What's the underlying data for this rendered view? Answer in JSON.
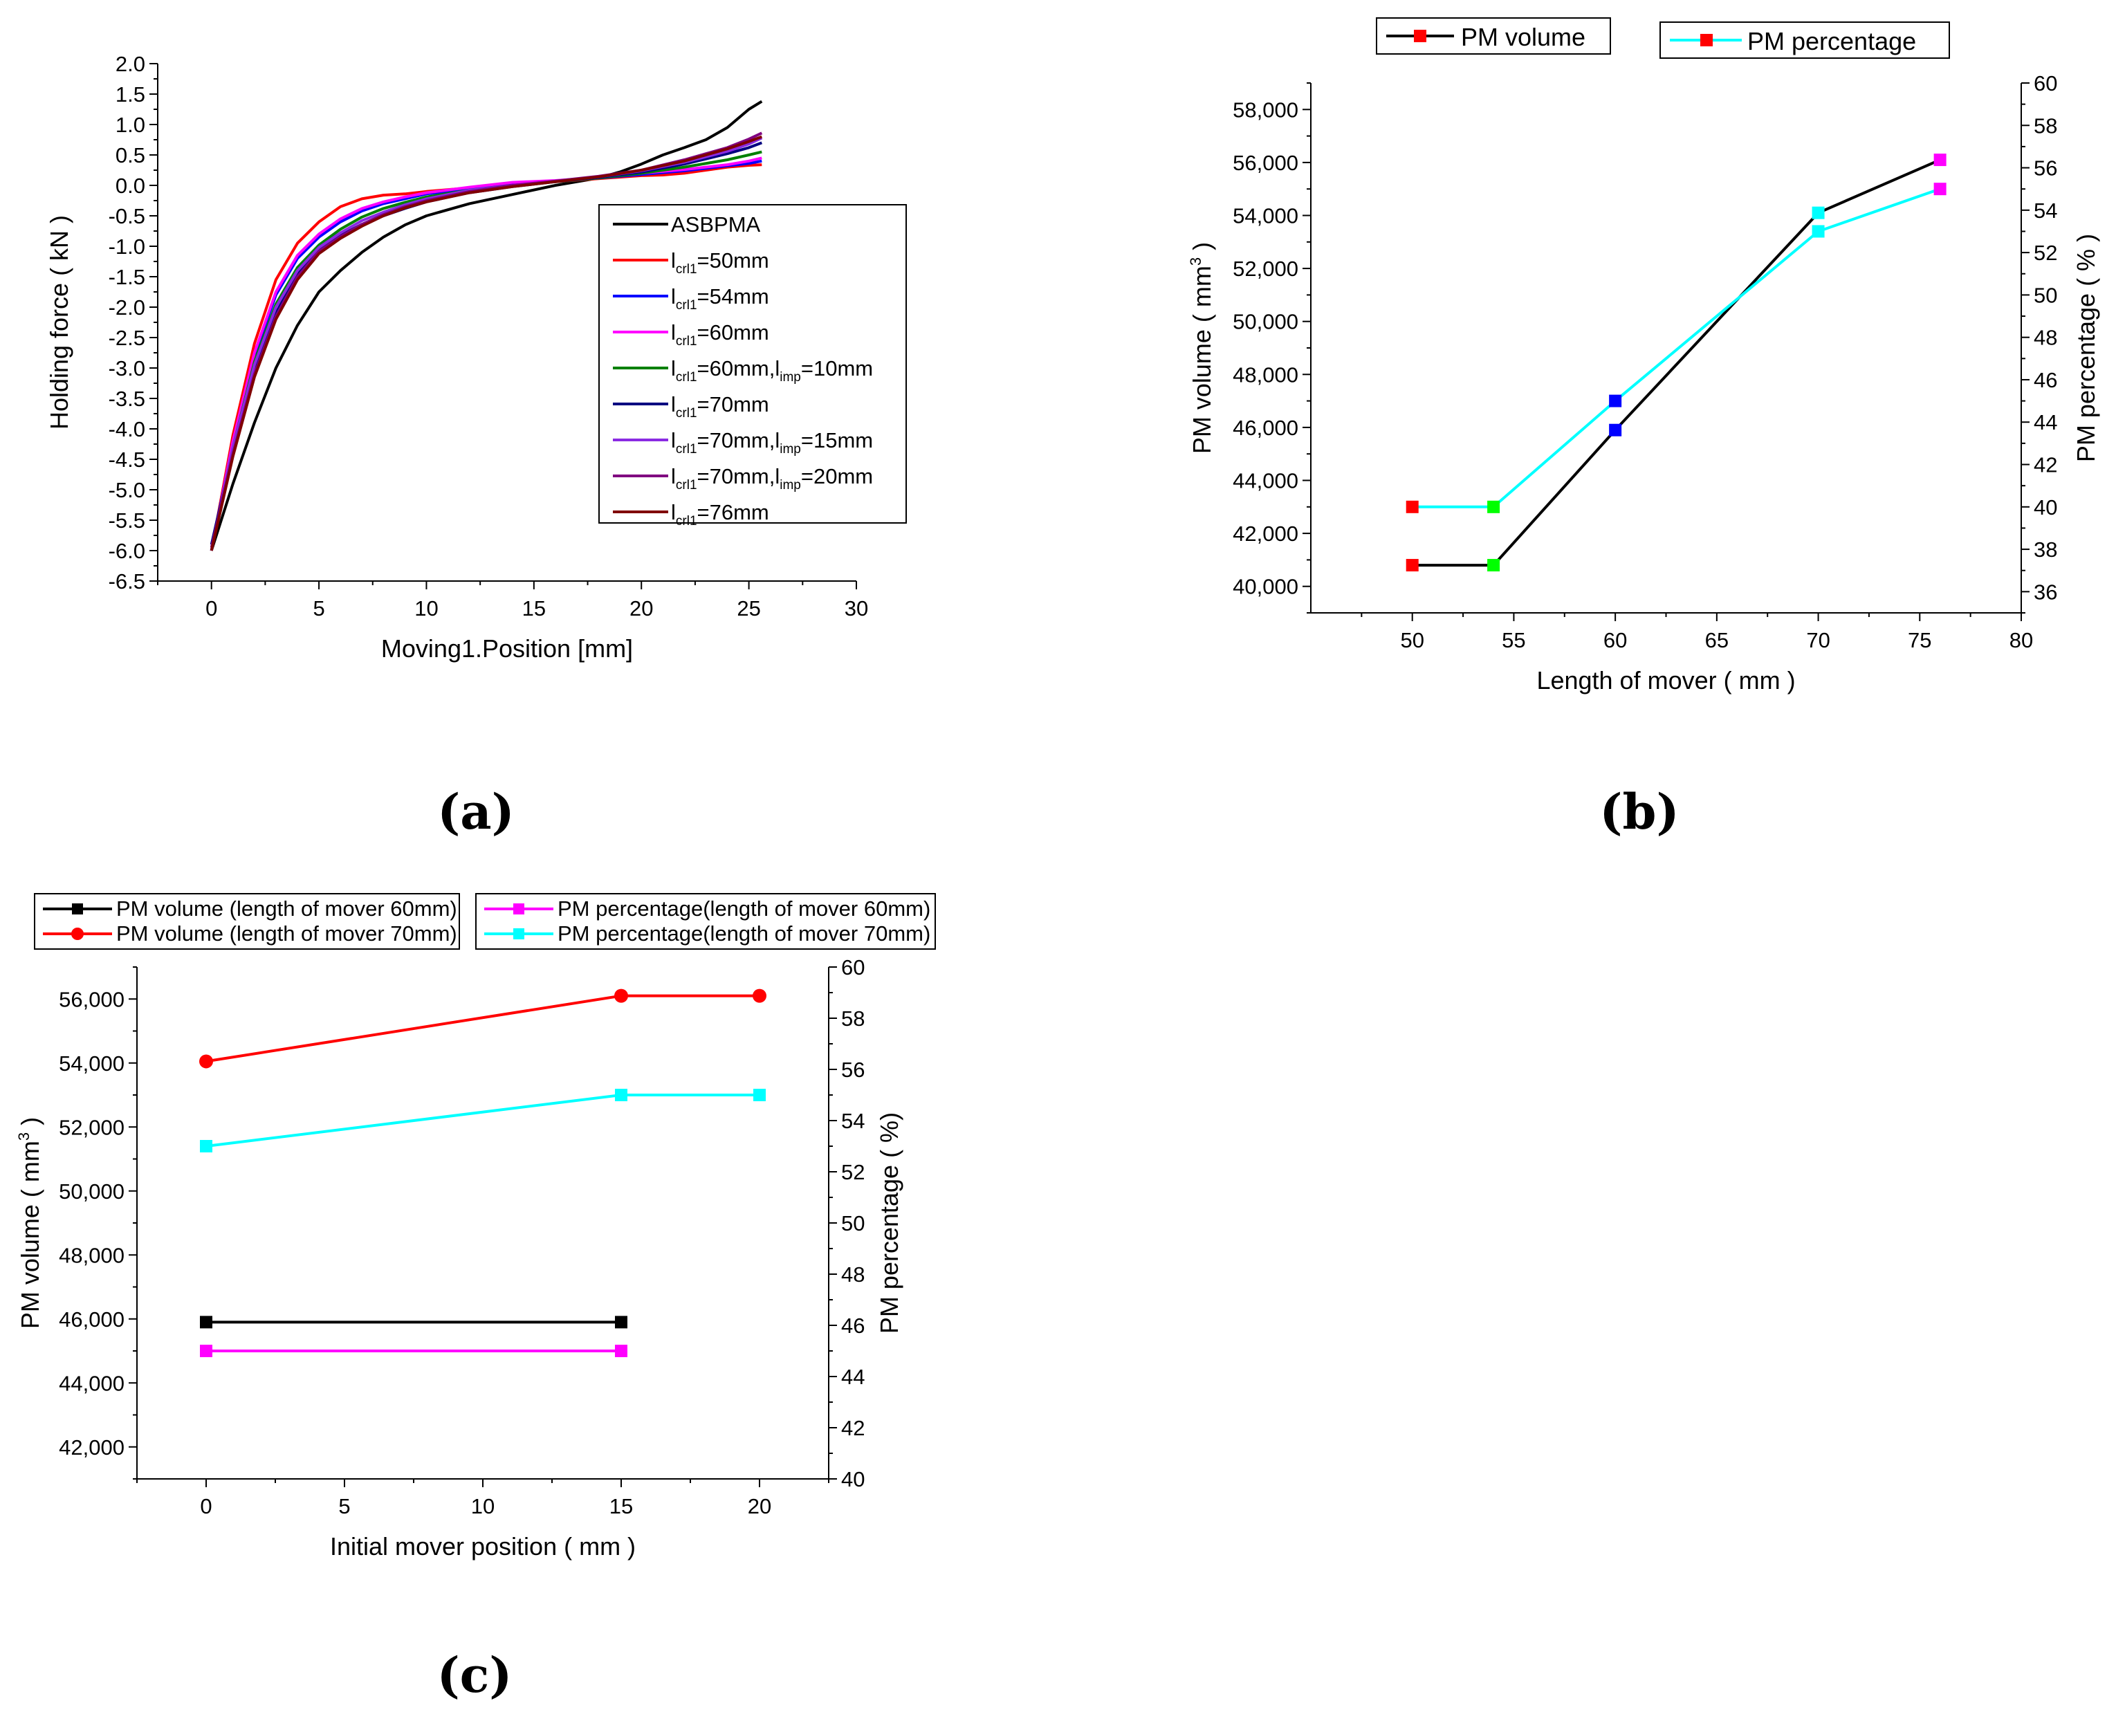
{
  "chart_data": [
    {
      "id": "a",
      "type": "line",
      "panel_label": "(a)",
      "xlabel": "Moving1.Position [mm]",
      "ylabel": "Holding force ( kN )",
      "xlim": [
        -2.5,
        30
      ],
      "ylim": [
        -6.5,
        2.0
      ],
      "xticks": [
        "0",
        "5",
        "10",
        "15",
        "20",
        "25",
        "30"
      ],
      "yticks": [
        "2.0",
        "1.5",
        "1.0",
        "0.5",
        "0.0",
        "-0.5",
        "-1.0",
        "-1.5",
        "-2.0",
        "-2.5",
        "-3.0",
        "-3.5",
        "-4.0",
        "-4.5",
        "-5.0",
        "-5.5",
        "-6.0",
        "-6.5"
      ],
      "series": [
        {
          "name": "ASBPMA",
          "legend": {
            "base": "ASBPMA",
            "sub1": "",
            "mid": "",
            "sub2": "",
            "tail": ""
          },
          "color": "#000000",
          "x": [
            0,
            1,
            2,
            3,
            4,
            5,
            6,
            7,
            8,
            9,
            10,
            12,
            14,
            16,
            18,
            19,
            20,
            21,
            22,
            23,
            24,
            25,
            25.6
          ],
          "y": [
            -6.0,
            -4.9,
            -3.9,
            -3.0,
            -2.3,
            -1.75,
            -1.4,
            -1.1,
            -0.85,
            -0.65,
            -0.5,
            -0.3,
            -0.15,
            0.0,
            0.12,
            0.22,
            0.35,
            0.5,
            0.62,
            0.75,
            0.95,
            1.25,
            1.38
          ]
        },
        {
          "name": "lcrl1=50mm",
          "legend": {
            "base": "l",
            "sub1": "crl1",
            "mid": "=50mm",
            "sub2": "",
            "tail": ""
          },
          "color": "#ff0000",
          "x": [
            0,
            1,
            2,
            3,
            4,
            5,
            6,
            7,
            8,
            9,
            10,
            12,
            14,
            16,
            18,
            20,
            21,
            22,
            23,
            24,
            25,
            25.6
          ],
          "y": [
            -6.0,
            -4.1,
            -2.6,
            -1.55,
            -0.95,
            -0.6,
            -0.35,
            -0.22,
            -0.16,
            -0.14,
            -0.1,
            -0.04,
            0.02,
            0.06,
            0.11,
            0.16,
            0.17,
            0.2,
            0.25,
            0.3,
            0.33,
            0.34
          ]
        },
        {
          "name": "lcrl1=54mm",
          "legend": {
            "base": "l",
            "sub1": "crl1",
            "mid": "=54mm",
            "sub2": "",
            "tail": ""
          },
          "color": "#0000ff",
          "x": [
            0,
            1,
            2,
            3,
            4,
            5,
            6,
            7,
            8,
            9,
            10,
            12,
            14,
            16,
            18,
            20,
            22,
            24,
            25,
            25.6
          ],
          "y": [
            -6.0,
            -4.2,
            -2.8,
            -1.8,
            -1.2,
            -0.85,
            -0.6,
            -0.42,
            -0.3,
            -0.22,
            -0.14,
            -0.05,
            0.02,
            0.07,
            0.12,
            0.18,
            0.24,
            0.32,
            0.36,
            0.4
          ]
        },
        {
          "name": "lcrl1=60mm",
          "legend": {
            "base": "l",
            "sub1": "crl1",
            "mid": "=60mm",
            "sub2": "",
            "tail": ""
          },
          "color": "#ff00ff",
          "x": [
            0,
            1,
            2,
            3,
            4,
            5,
            6,
            7,
            8,
            9,
            10,
            12,
            14,
            16,
            18,
            20,
            22,
            24,
            25,
            25.6
          ],
          "y": [
            -6.0,
            -4.2,
            -2.75,
            -1.75,
            -1.15,
            -0.8,
            -0.55,
            -0.38,
            -0.27,
            -0.19,
            -0.12,
            -0.03,
            0.05,
            0.08,
            0.13,
            0.2,
            0.26,
            0.34,
            0.4,
            0.45
          ]
        },
        {
          "name": "lcrl1=60mm,limp=10mm",
          "legend": {
            "base": "l",
            "sub1": "crl1",
            "mid": "=60mm,l",
            "sub2": "imp",
            "tail": "=10mm"
          },
          "color": "#008000",
          "x": [
            0,
            1,
            2,
            3,
            4,
            5,
            6,
            7,
            8,
            9,
            10,
            12,
            14,
            16,
            18,
            20,
            22,
            24,
            25,
            25.6
          ],
          "y": [
            -6.0,
            -4.3,
            -2.9,
            -1.95,
            -1.35,
            -0.98,
            -0.72,
            -0.52,
            -0.38,
            -0.28,
            -0.19,
            -0.08,
            0.0,
            0.06,
            0.12,
            0.2,
            0.3,
            0.42,
            0.5,
            0.55
          ]
        },
        {
          "name": "lcrl1=70mm",
          "legend": {
            "base": "l",
            "sub1": "crl1",
            "mid": "=70mm",
            "sub2": "",
            "tail": ""
          },
          "color": "#000080",
          "x": [
            0,
            1,
            2,
            3,
            4,
            5,
            6,
            7,
            8,
            9,
            10,
            12,
            14,
            16,
            18,
            20,
            22,
            24,
            25,
            25.6
          ],
          "y": [
            -5.9,
            -4.35,
            -3.05,
            -2.1,
            -1.45,
            -1.05,
            -0.82,
            -0.64,
            -0.5,
            -0.38,
            -0.27,
            -0.12,
            -0.02,
            0.06,
            0.13,
            0.22,
            0.35,
            0.52,
            0.62,
            0.7
          ]
        },
        {
          "name": "lcrl1=70mm,limp=15mm",
          "legend": {
            "base": " l",
            "sub1": "crl1",
            "mid": "=70mm,l",
            "sub2": "imp",
            "tail": "=15mm"
          },
          "color": "#8a2be2",
          "x": [
            0,
            1,
            2,
            3,
            4,
            5,
            6,
            7,
            8,
            9,
            10,
            12,
            14,
            16,
            18,
            20,
            22,
            24,
            25,
            25.6
          ],
          "y": [
            -6.0,
            -4.3,
            -2.95,
            -2.0,
            -1.4,
            -1.02,
            -0.78,
            -0.58,
            -0.44,
            -0.32,
            -0.22,
            -0.08,
            0.0,
            0.07,
            0.14,
            0.24,
            0.38,
            0.56,
            0.68,
            0.78
          ]
        },
        {
          "name": "lcrl1=70mm,limp=20mm",
          "legend": {
            "base": "l",
            "sub1": "crl1",
            "mid": "=70mm,l",
            "sub2": "imp",
            "tail": "=20mm"
          },
          "color": "#800080",
          "x": [
            0,
            1,
            2,
            3,
            4,
            5,
            6,
            7,
            8,
            9,
            10,
            12,
            14,
            16,
            18,
            20,
            22,
            24,
            25,
            25.6
          ],
          "y": [
            -5.95,
            -4.4,
            -3.1,
            -2.15,
            -1.5,
            -1.08,
            -0.84,
            -0.64,
            -0.48,
            -0.35,
            -0.25,
            -0.1,
            0.0,
            0.07,
            0.15,
            0.25,
            0.42,
            0.62,
            0.76,
            0.86
          ]
        },
        {
          "name": "lcrl1=76mm",
          "legend": {
            "base": "l",
            "sub1": "crl1",
            "mid": "=76mm",
            "sub2": "",
            "tail": ""
          },
          "color": "#800000",
          "x": [
            0,
            1,
            2,
            3,
            4,
            5,
            6,
            7,
            8,
            9,
            10,
            12,
            14,
            16,
            18,
            20,
            22,
            24,
            25,
            25.6
          ],
          "y": [
            -6.0,
            -4.45,
            -3.15,
            -2.2,
            -1.55,
            -1.12,
            -0.87,
            -0.67,
            -0.5,
            -0.37,
            -0.27,
            -0.12,
            -0.02,
            0.06,
            0.14,
            0.25,
            0.4,
            0.6,
            0.72,
            0.8
          ]
        }
      ]
    },
    {
      "id": "b",
      "type": "line",
      "panel_label": "(b)",
      "xlabel": "Length of mover ( mm )",
      "ylabel": "PM volume ( mm3 )",
      "ylabel_parts": {
        "base": "PM volume ( mm",
        "sup": "3",
        "tail": " )"
      },
      "y2label": "PM percentage ( % )",
      "xlim": [
        45,
        80
      ],
      "ylim": [
        39000,
        59000
      ],
      "y2lim": [
        35,
        60
      ],
      "xticks": [
        "50",
        "55",
        "60",
        "65",
        "70",
        "75",
        "80"
      ],
      "yticks": [
        "40,000",
        "42,000",
        "44,000",
        "46,000",
        "48,000",
        "50,000",
        "52,000",
        "54,000",
        "56,000",
        "58,000"
      ],
      "y2ticks": [
        "36",
        "38",
        "40",
        "42",
        "44",
        "46",
        "48",
        "50",
        "52",
        "54",
        "56",
        "58",
        "60"
      ],
      "categories": [
        50,
        54,
        60,
        70,
        76
      ],
      "marker_colors": [
        "#ff0000",
        "#00ff00",
        "#0000ff",
        "#00ffff",
        "#ff00ff"
      ],
      "series": [
        {
          "name": "PM volume",
          "axis": "left",
          "color": "#000000",
          "values": [
            40800,
            40800,
            45900,
            54100,
            56100
          ]
        },
        {
          "name": "PM percentage",
          "axis": "right",
          "color": "#00ffff",
          "values": [
            40,
            40,
            45,
            53,
            55
          ]
        }
      ],
      "legend_marker_color": "#ff0000"
    },
    {
      "id": "c",
      "type": "line",
      "panel_label": "(c)",
      "xlabel": "Initial mover position ( mm )",
      "ylabel": "PM volume ( mm3 )",
      "ylabel_parts": {
        "base": "PM volume ( mm",
        "sup": "3",
        "tail": " )"
      },
      "y2label": "PM percentage ( %)",
      "xlim": [
        -2.5,
        22.5
      ],
      "ylim": [
        41000,
        57000
      ],
      "y2lim": [
        40,
        60
      ],
      "xticks": [
        "0",
        "5",
        "10",
        "15",
        "20"
      ],
      "yticks": [
        "42,000",
        "44,000",
        "46,000",
        "48,000",
        "50,000",
        "52,000",
        "54,000",
        "56,000"
      ],
      "y2ticks": [
        "40",
        "42",
        "44",
        "46",
        "48",
        "50",
        "52",
        "54",
        "56",
        "58",
        "60"
      ],
      "series": [
        {
          "name": "PM volume (length of mover 60mm)",
          "axis": "left",
          "color": "#000000",
          "marker": "square",
          "x": [
            0,
            15
          ],
          "values": [
            45900,
            45900
          ]
        },
        {
          "name": "PM volume (length of mover 70mm)",
          "axis": "left",
          "color": "#ff0000",
          "marker": "circle",
          "x": [
            0,
            15,
            20
          ],
          "values": [
            54050,
            56100,
            56100
          ]
        },
        {
          "name": "PM percentage(length of mover 60mm)",
          "axis": "right",
          "color": "#ff00ff",
          "marker": "square",
          "x": [
            0,
            15
          ],
          "values": [
            45,
            45
          ]
        },
        {
          "name": "PM percentage(length of mover 70mm)",
          "axis": "right",
          "color": "#00ffff",
          "marker": "square",
          "x": [
            0,
            15,
            20
          ],
          "values": [
            53,
            55,
            55
          ]
        }
      ]
    }
  ]
}
